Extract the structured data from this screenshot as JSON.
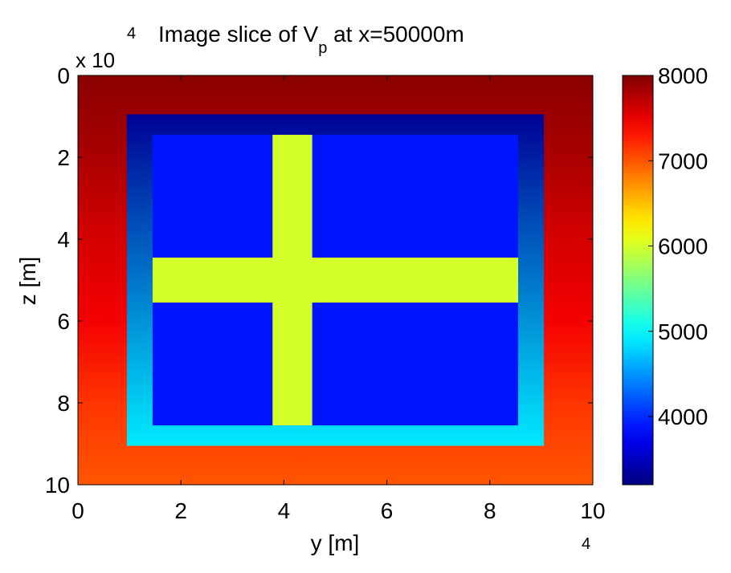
{
  "chart_data": {
    "type": "heatmap",
    "title_prefix": "Image slice of V",
    "title_subscript": "p",
    "title_suffix": " at x=50000m",
    "xlabel": "y [m]",
    "ylabel": "z [m]",
    "x_ticks": [
      "0",
      "2",
      "4",
      "6",
      "8",
      "10"
    ],
    "y_ticks": [
      "0",
      "2",
      "4",
      "6",
      "8",
      "10"
    ],
    "x_exponent_label": "4",
    "y_exponent_prefix": "x 10",
    "y_exponent_label": "4",
    "x_range": [
      0,
      100000
    ],
    "z_range": [
      0,
      100000
    ],
    "z_reversed": true,
    "colorbar": {
      "colormap": "jet",
      "range": [
        3200,
        8000
      ],
      "ticks": [
        "4000",
        "5000",
        "6000",
        "7000",
        "8000"
      ],
      "tick_values": [
        4000,
        5000,
        6000,
        7000,
        8000
      ]
    },
    "background_gradient": {
      "description_values_by_depth": [
        {
          "z": 0,
          "vp": 7950
        },
        {
          "z": 20000,
          "vp": 7800
        },
        {
          "z": 40000,
          "vp": 7600
        },
        {
          "z": 60000,
          "vp": 7450
        },
        {
          "z": 80000,
          "vp": 7150
        },
        {
          "z": 100000,
          "vp": 7000
        }
      ]
    },
    "inner_block": {
      "y_range": [
        9500,
        90500
      ],
      "z_range": [
        9500,
        90500
      ],
      "vp_top": 3300,
      "vp_bottom": 4900
    },
    "core_block": {
      "y_range": [
        14500,
        85500
      ],
      "z_range": [
        14500,
        85500
      ],
      "vp": 3900
    },
    "cross": {
      "vp": 6000,
      "vertical_bar": {
        "y_range": [
          37800,
          45500
        ],
        "z_range": [
          14500,
          85500
        ]
      },
      "horizontal_bar": {
        "y_range": [
          14500,
          85500
        ],
        "z_range": [
          44500,
          55500
        ]
      }
    },
    "grid": false
  }
}
